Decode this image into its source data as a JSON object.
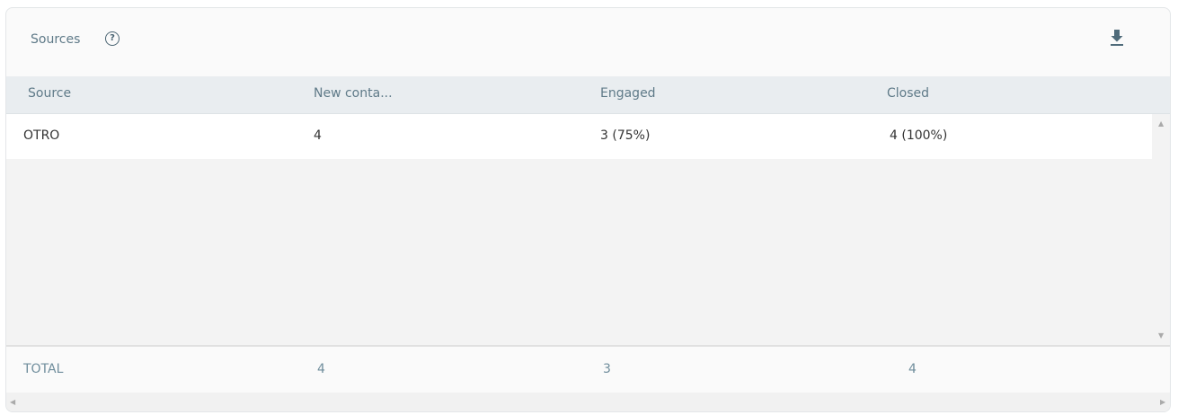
{
  "header": {
    "title": "Sources",
    "help_icon": "question-circle-icon",
    "download_icon": "download-icon"
  },
  "columns": [
    "Source",
    "New conta...",
    "Engaged",
    "Closed"
  ],
  "rows": [
    {
      "source": "OTRO",
      "new_contacts": "4",
      "engaged": "3",
      "engaged_pct": "(75%)",
      "closed": "4",
      "closed_pct": "(100%)"
    }
  ],
  "footer": {
    "label": "TOTAL",
    "new_contacts": "4",
    "engaged": "3",
    "closed": "4"
  }
}
